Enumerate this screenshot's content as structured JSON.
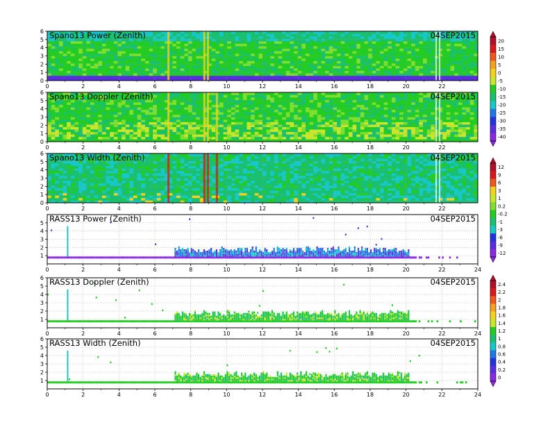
{
  "date": "04SEP2015",
  "panels": [
    {
      "title": "Spano13 Power (Zenith)",
      "kind": "spano",
      "colorbar": "a",
      "xticks": [
        "0",
        "2",
        "4",
        "6",
        "8",
        "10",
        "12",
        "14",
        "16",
        "18",
        "20",
        "22"
      ],
      "yticks": [
        "0",
        "1",
        "2",
        "3",
        "4",
        "5",
        "6"
      ]
    },
    {
      "title": "Spano13 Doppler (Zenith)",
      "kind": "spano",
      "colorbar": "a",
      "xticks": [
        "0",
        "2",
        "4",
        "6",
        "8",
        "10",
        "12",
        "14",
        "16",
        "18",
        "20",
        "22"
      ],
      "yticks": [
        "0",
        "1",
        "2",
        "3",
        "4",
        "5",
        "6"
      ]
    },
    {
      "title": "Spano13 Width (Zenith)",
      "kind": "spano",
      "colorbar": "b",
      "xticks": [
        "0",
        "2",
        "4",
        "6",
        "8",
        "10",
        "12",
        "14",
        "16",
        "18",
        "20",
        "22"
      ],
      "yticks": [
        "0",
        "1",
        "2",
        "3",
        "4",
        "5",
        "6"
      ]
    },
    {
      "title": "RASS13 Power (Zenith)",
      "kind": "rass",
      "colorbar": "b",
      "xticks": [
        "0",
        "2",
        "4",
        "6",
        "8",
        "10",
        "12",
        "14",
        "16",
        "18",
        "20",
        "22",
        "24"
      ],
      "yticks": [
        "1",
        "2",
        "3",
        "4",
        "5"
      ]
    },
    {
      "title": "RASS13 Doppler (Zenith)",
      "kind": "rass",
      "colorbar": "c",
      "xticks": [
        "0",
        "2",
        "4",
        "6",
        "8",
        "10",
        "12",
        "14",
        "16",
        "18",
        "20",
        "22",
        "24"
      ],
      "yticks": [
        "1",
        "2",
        "3",
        "4",
        "5",
        "6"
      ]
    },
    {
      "title": "RASS13 Width (Zenith)",
      "kind": "rass",
      "colorbar": "c",
      "xticks": [
        "0",
        "2",
        "4",
        "6",
        "8",
        "10",
        "12",
        "14",
        "16",
        "18",
        "20",
        "22",
        "24"
      ],
      "yticks": [
        "1",
        "2",
        "3",
        "4",
        "5",
        "6"
      ]
    }
  ],
  "colorbars": {
    "a": {
      "labels": [
        "20",
        "15",
        "10",
        "5",
        "0",
        "-5",
        "-10",
        "-15",
        "-20",
        "-25",
        "-30",
        "-35",
        "-40"
      ]
    },
    "b": {
      "labels": [
        "12",
        "9",
        "6",
        "3",
        "1",
        "0.2",
        "-0.2",
        "-1",
        "-3",
        "-6",
        "-9",
        "-12"
      ]
    },
    "c": {
      "labels": [
        "2.4",
        "2.2",
        "2",
        "1.8",
        "1.6",
        "1.4",
        "1.2",
        "1",
        "0.8",
        "0.6",
        "0.4",
        "0.2",
        "0"
      ]
    }
  },
  "colors": {
    "palette": [
      "#8a2be2",
      "#5a2ee0",
      "#2233dd",
      "#1f78e8",
      "#17c8c8",
      "#18c070",
      "#22cc22",
      "#7fdf2f",
      "#c8e62a",
      "#f2d21d",
      "#f5a11f",
      "#f0571d",
      "#d9181c",
      "#b0102a"
    ]
  },
  "chart_data": [
    {
      "type": "heatmap",
      "title": "Spano13 Power (Zenith)",
      "date_label": "04SEP2015",
      "xlim": [
        0,
        24
      ],
      "ylim": [
        0,
        6
      ],
      "x_ticks": [
        0,
        2,
        4,
        6,
        8,
        10,
        12,
        14,
        16,
        18,
        20,
        22
      ],
      "y_ticks": [
        0,
        1,
        2,
        3,
        4,
        5,
        6
      ],
      "colorbar_ticks": [
        20,
        15,
        10,
        5,
        0,
        -5,
        -10,
        -15,
        -20,
        -25,
        -30,
        -35,
        -40
      ],
      "grid": true
    },
    {
      "type": "heatmap",
      "title": "Spano13 Doppler (Zenith)",
      "date_label": "04SEP2015",
      "xlim": [
        0,
        24
      ],
      "ylim": [
        0,
        6
      ],
      "x_ticks": [
        0,
        2,
        4,
        6,
        8,
        10,
        12,
        14,
        16,
        18,
        20,
        22
      ],
      "y_ticks": [
        0,
        1,
        2,
        3,
        4,
        5,
        6
      ],
      "colorbar_ticks": [
        20,
        15,
        10,
        5,
        0,
        -5,
        -10,
        -15,
        -20,
        -25,
        -30,
        -35,
        -40
      ],
      "grid": true
    },
    {
      "type": "heatmap",
      "title": "Spano13 Width (Zenith)",
      "date_label": "04SEP2015",
      "xlim": [
        0,
        24
      ],
      "ylim": [
        0,
        6
      ],
      "x_ticks": [
        0,
        2,
        4,
        6,
        8,
        10,
        12,
        14,
        16,
        18,
        20,
        22
      ],
      "y_ticks": [
        0,
        1,
        2,
        3,
        4,
        5,
        6
      ],
      "colorbar_ticks": [
        12,
        9,
        6,
        3,
        1,
        0.2,
        -0.2,
        -1,
        -3,
        -6,
        -9,
        -12
      ],
      "grid": true
    },
    {
      "type": "heatmap",
      "title": "RASS13 Power (Zenith)",
      "date_label": "04SEP2015",
      "xlim": [
        0,
        24
      ],
      "ylim": [
        0,
        6
      ],
      "x_ticks": [
        0,
        2,
        4,
        6,
        8,
        10,
        12,
        14,
        16,
        18,
        20,
        22,
        24
      ],
      "y_ticks": [
        1,
        2,
        3,
        4,
        5
      ],
      "colorbar_ticks": [
        12,
        9,
        6,
        3,
        1,
        0.2,
        -0.2,
        -1,
        -3,
        -6,
        -9,
        -12
      ],
      "grid": true
    },
    {
      "type": "heatmap",
      "title": "RASS13 Doppler (Zenith)",
      "date_label": "04SEP2015",
      "xlim": [
        0,
        24
      ],
      "ylim": [
        0,
        6
      ],
      "x_ticks": [
        0,
        2,
        4,
        6,
        8,
        10,
        12,
        14,
        16,
        18,
        20,
        22,
        24
      ],
      "y_ticks": [
        1,
        2,
        3,
        4,
        5,
        6
      ],
      "colorbar_ticks": [
        2.4,
        2.2,
        2,
        1.8,
        1.6,
        1.4,
        1.2,
        1,
        0.8,
        0.6,
        0.4,
        0.2,
        0
      ],
      "grid": true
    },
    {
      "type": "heatmap",
      "title": "RASS13 Width (Zenith)",
      "date_label": "04SEP2015",
      "xlim": [
        0,
        24
      ],
      "ylim": [
        0,
        6
      ],
      "x_ticks": [
        0,
        2,
        4,
        6,
        8,
        10,
        12,
        14,
        16,
        18,
        20,
        22,
        24
      ],
      "y_ticks": [
        1,
        2,
        3,
        4,
        5,
        6
      ],
      "colorbar_ticks": [
        2.4,
        2.2,
        2,
        1.8,
        1.6,
        1.4,
        1.2,
        1,
        0.8,
        0.6,
        0.4,
        0.2,
        0
      ],
      "grid": true
    }
  ]
}
